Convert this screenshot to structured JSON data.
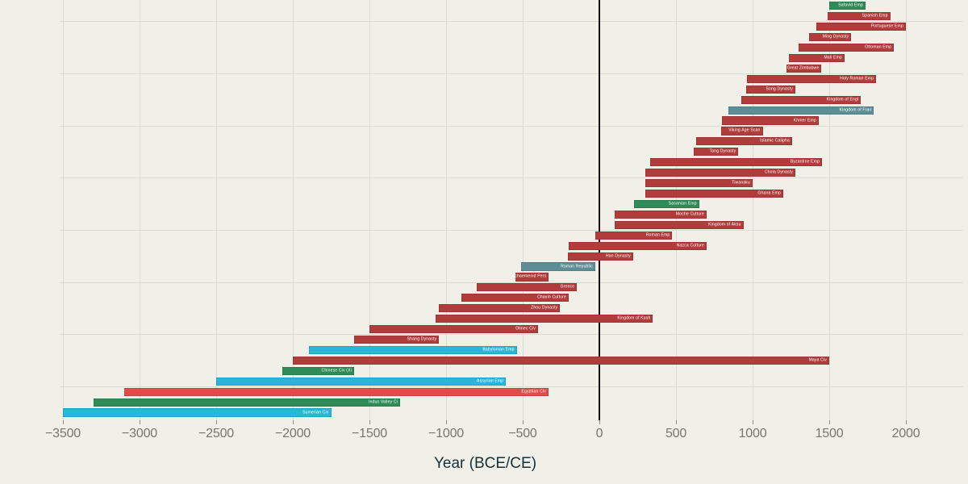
{
  "chart_data": {
    "type": "bar",
    "orientation": "horizontal",
    "title": "",
    "xlabel": "Year (BCE/CE)",
    "xlim": [
      -3650,
      2350
    ],
    "grid": true,
    "zero_line_at": 0,
    "legend": "none",
    "x_ticks": [
      {
        "value": -3500,
        "label": "−3500"
      },
      {
        "value": -3000,
        "label": "−3000"
      },
      {
        "value": -2500,
        "label": "−2500"
      },
      {
        "value": -2000,
        "label": "−2000"
      },
      {
        "value": -1500,
        "label": "−1500"
      },
      {
        "value": -1000,
        "label": "−1000"
      },
      {
        "value": -500,
        "label": "−500"
      },
      {
        "value": 0,
        "label": "0"
      },
      {
        "value": 500,
        "label": "500"
      },
      {
        "value": 1000,
        "label": "1000"
      },
      {
        "value": 1500,
        "label": "1500"
      },
      {
        "value": 2000,
        "label": "2000"
      }
    ],
    "bars": [
      {
        "label": "Safavid Emp",
        "start": 1501,
        "end": 1736,
        "color": "green"
      },
      {
        "label": "Spanish Emp",
        "start": 1492,
        "end": 1898,
        "color": "red"
      },
      {
        "label": "Portuguese Emp",
        "start": 1415,
        "end": 1999,
        "color": "red"
      },
      {
        "label": "Ming Dynasty",
        "start": 1368,
        "end": 1644,
        "color": "red"
      },
      {
        "label": "Ottoman Emp",
        "start": 1299,
        "end": 1922,
        "color": "red"
      },
      {
        "label": "Mali Emp",
        "start": 1235,
        "end": 1600,
        "color": "red"
      },
      {
        "label": "Great Zimbabwe",
        "start": 1220,
        "end": 1450,
        "color": "red"
      },
      {
        "label": "Holy Roman Emp",
        "start": 962,
        "end": 1806,
        "color": "red"
      },
      {
        "label": "Song Dynasty",
        "start": 960,
        "end": 1279,
        "color": "red"
      },
      {
        "label": "Kingdom of Engl",
        "start": 927,
        "end": 1707,
        "color": "red"
      },
      {
        "label": "Kingdom of Fran",
        "start": 843,
        "end": 1792,
        "color": "slate"
      },
      {
        "label": "Khmer Emp",
        "start": 802,
        "end": 1431,
        "color": "red"
      },
      {
        "label": "Viking Age Scan",
        "start": 793,
        "end": 1066,
        "color": "red"
      },
      {
        "label": "Islamic Calipha",
        "start": 632,
        "end": 1258,
        "color": "red"
      },
      {
        "label": "Tang Dynasty",
        "start": 618,
        "end": 907,
        "color": "red"
      },
      {
        "label": "Byzantine Emp",
        "start": 330,
        "end": 1453,
        "color": "red"
      },
      {
        "label": "Chola Dynasty",
        "start": 300,
        "end": 1279,
        "color": "red"
      },
      {
        "label": "Tiwanaku",
        "start": 300,
        "end": 1000,
        "color": "red"
      },
      {
        "label": "Ghana Emp",
        "start": 300,
        "end": 1200,
        "color": "red"
      },
      {
        "label": "Sasanian Emp",
        "start": 224,
        "end": 651,
        "color": "green"
      },
      {
        "label": "Moche Culture",
        "start": 100,
        "end": 700,
        "color": "red"
      },
      {
        "label": "Kingdom of Aksu",
        "start": 100,
        "end": 940,
        "color": "red"
      },
      {
        "label": "Roman Emp",
        "start": -27,
        "end": 476,
        "color": "red"
      },
      {
        "label": "Nazca Culture",
        "start": -200,
        "end": 700,
        "color": "red"
      },
      {
        "label": "Han Dynasty",
        "start": -206,
        "end": 220,
        "color": "red"
      },
      {
        "label": "Roman Republic",
        "start": -509,
        "end": -27,
        "color": "slate"
      },
      {
        "label": "Achaemenid Pers",
        "start": -550,
        "end": -330,
        "color": "red"
      },
      {
        "label": "Greece",
        "start": -800,
        "end": -146,
        "color": "red"
      },
      {
        "label": "Chavin Culture",
        "start": -900,
        "end": -200,
        "color": "red"
      },
      {
        "label": "Zhou Dynasty",
        "start": -1046,
        "end": -256,
        "color": "red"
      },
      {
        "label": "Kingdom of Kush",
        "start": -1070,
        "end": 350,
        "color": "red"
      },
      {
        "label": "Olmec Civ",
        "start": -1500,
        "end": -400,
        "color": "red"
      },
      {
        "label": "Shang Dynasty",
        "start": -1600,
        "end": -1046,
        "color": "red"
      },
      {
        "label": "Babylonian Emp",
        "start": -1895,
        "end": -539,
        "color": "cyan"
      },
      {
        "label": "Maya Civ",
        "start": -2000,
        "end": 1500,
        "color": "red"
      },
      {
        "label": "Chinese Civ (Xi",
        "start": -2070,
        "end": -1600,
        "color": "green"
      },
      {
        "label": "Assyrian Emp",
        "start": -2500,
        "end": -609,
        "color": "cyan"
      },
      {
        "label": "Egyptian Civ",
        "start": -3100,
        "end": -332,
        "color": "bright_red"
      },
      {
        "label": "Indus Valley Ci",
        "start": -3300,
        "end": -1300,
        "color": "green"
      },
      {
        "label": "Sumerian Civ",
        "start": -3500,
        "end": -1750,
        "color": "cyan"
      }
    ]
  },
  "colors": {
    "red": "#b03c3c",
    "bright_red": "#e04b4b",
    "cyan": "#29b7d7",
    "green": "#2f8b57",
    "slate": "#5f8d96",
    "background": "#f0efe8",
    "grid": "#dcdbd0",
    "zero_line": "#121212",
    "bar_label": "#ffffff",
    "tick_text": "#76766e",
    "axis_title_text": "#15313c"
  }
}
